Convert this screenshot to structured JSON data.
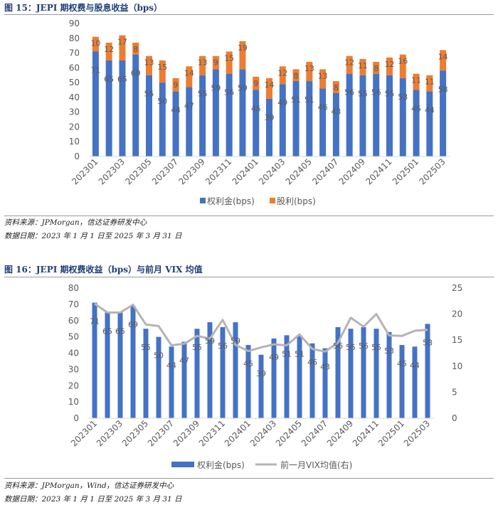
{
  "figure1": {
    "title": "图 15：JEPI 期权费与股息收益（bps）",
    "source": "资料来源：JPMorgan，信达证券研发中心",
    "date_range": "数据日期：2023 年 1 月 1 日至 2025 年 3 月 31 日"
  },
  "figure2": {
    "title": "图 16：JEPI 期权费收益（bps）与前月 VIX 均值",
    "source": "资料来源：JPMorgan，Wind，信达证券研发中心",
    "date_range": "数据日期：2023 年 1 月 1 日至 2025 年 3 月 31 日"
  },
  "colors": {
    "blue": "#4472c4",
    "orange": "#ed7d31",
    "gray": "#b4b4b4"
  },
  "chart_data": [
    {
      "type": "bar",
      "stacked": true,
      "categories": [
        "202301",
        "202302",
        "202303",
        "202304",
        "202305",
        "202306",
        "202307",
        "202308",
        "202309",
        "202310",
        "202311",
        "202312",
        "202401",
        "202402",
        "202403",
        "202404",
        "202405",
        "202406",
        "202407",
        "202408",
        "202409",
        "202410",
        "202411",
        "202412",
        "202501",
        "202502",
        "202503"
      ],
      "x_tick_labels": [
        "202301",
        "202303",
        "202305",
        "202307",
        "202309",
        "202311",
        "202401",
        "202403",
        "202405",
        "202407",
        "202409",
        "202411",
        "202501",
        "202503"
      ],
      "series": [
        {
          "name": "权利金(bps)",
          "values": [
            71,
            65,
            65,
            69,
            55,
            50,
            44,
            47,
            55,
            59,
            56,
            59,
            45,
            39,
            49,
            51,
            51,
            46,
            43,
            56,
            55,
            56,
            55,
            53,
            45,
            44,
            58
          ]
        },
        {
          "name": "股利(bps)",
          "values": [
            10,
            12,
            17,
            8,
            13,
            15,
            9,
            14,
            13,
            9,
            15,
            19,
            9,
            14,
            12,
            8,
            13,
            13,
            8,
            12,
            11,
            8,
            12,
            16,
            11,
            11,
            14
          ]
        }
      ],
      "ylim": [
        0,
        90
      ],
      "yticks": [
        "0",
        "10",
        "20",
        "30",
        "40",
        "50",
        "60",
        "70",
        "80",
        "90"
      ],
      "legend": "bottom"
    },
    {
      "type": "bar",
      "categories": [
        "202301",
        "202302",
        "202303",
        "202304",
        "202305",
        "202306",
        "202307",
        "202308",
        "202309",
        "202310",
        "202311",
        "202312",
        "202401",
        "202402",
        "202403",
        "202404",
        "202405",
        "202406",
        "202407",
        "202408",
        "202409",
        "202410",
        "202411",
        "202412",
        "202501",
        "202502",
        "202503"
      ],
      "x_tick_labels": [
        "202301",
        "202303",
        "202305",
        "202307",
        "202309",
        "202311",
        "202401",
        "202403",
        "202405",
        "202407",
        "202409",
        "202411",
        "202501",
        "202503"
      ],
      "series": [
        {
          "name": "权利金(bps)",
          "type": "bar",
          "axis": "left",
          "values": [
            71,
            65,
            65,
            69,
            55,
            50,
            44,
            47,
            55,
            59,
            56,
            59,
            45,
            39,
            49,
            51,
            51,
            46,
            43,
            56,
            55,
            56,
            55,
            53,
            45,
            44,
            58
          ]
        },
        {
          "name": "前一月VIX均值(右)",
          "type": "line",
          "axis": "right",
          "values": [
            22.0,
            20.3,
            20.3,
            21.8,
            18.0,
            17.7,
            14.0,
            14.3,
            15.8,
            15.3,
            18.9,
            14.1,
            12.9,
            13.6,
            14.2,
            14.0,
            16.1,
            13.3,
            12.8,
            14.5,
            19.3,
            17.6,
            20.0,
            15.9,
            15.8,
            16.8,
            17.0
          ]
        }
      ],
      "ylim": [
        0,
        80
      ],
      "yticks": [
        "0",
        "10",
        "20",
        "30",
        "40",
        "50",
        "60",
        "70",
        "80"
      ],
      "y2lim": [
        0,
        25
      ],
      "y2ticks": [
        "0",
        "5",
        "10",
        "15",
        "20",
        "25"
      ],
      "legend": "bottom"
    }
  ]
}
